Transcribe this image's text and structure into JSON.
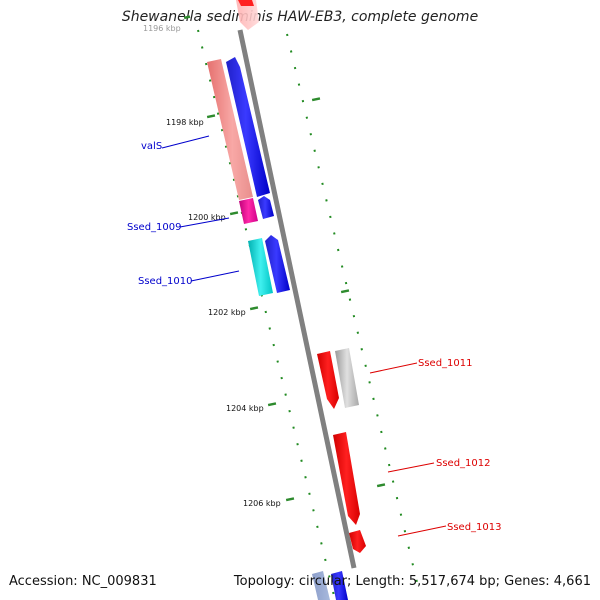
{
  "title": "Shewanella sediminis HAW-EB3, complete genome",
  "ticks": [
    "1196 kbp",
    "1198 kbp",
    "1200 kbp",
    "1202 kbp",
    "1204 kbp",
    "1206 kbp"
  ],
  "genes": [
    {
      "label": "valS",
      "color": "#0000cc"
    },
    {
      "label": "Ssed_1009",
      "color": "#0000cc"
    },
    {
      "label": "Ssed_1010",
      "color": "#0000cc"
    },
    {
      "label": "Ssed_1011",
      "color": "#dd0000"
    },
    {
      "label": "Ssed_1012",
      "color": "#dd0000"
    },
    {
      "label": "Ssed_1013",
      "color": "#dd0000"
    }
  ],
  "footer": {
    "accession": "Accession: NC_009831",
    "summary": "Topology: circular; Length: 5,517,674 bp; Genes: 4,661"
  },
  "colors": {
    "backbone": "#808080",
    "ruler": "#228b22",
    "forward_strand": "#0000cc",
    "reverse_strand": "#dd0000"
  }
}
